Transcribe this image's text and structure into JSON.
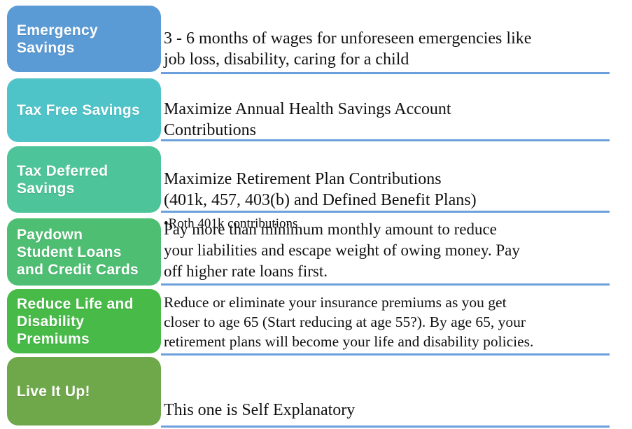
{
  "divider_color": "#6CA0DC",
  "rows": [
    {
      "label": "Emergency\nSavings",
      "box_color": "#5B9BD5",
      "text": "3 - 6 months of wages for unforeseen emergencies like\njob loss, disability, caring for a child",
      "note": ""
    },
    {
      "label": "Tax Free Savings",
      "box_color": "#4EC3C8",
      "text": "Maximize Annual Health Savings Account\nContributions",
      "note": ""
    },
    {
      "label": "Tax Deferred\nSavings",
      "box_color": "#4EC49A",
      "text": "Maximize Retirement Plan Contributions\n(401k, 457, 403(b) and Defined Benefit Plans)",
      "note": "•Roth 401k contributions"
    },
    {
      "label": "Paydown\nStudent Loans\nand Credit Cards",
      "box_color": "#4DBE72",
      "text": "Pay more than minimum monthly amount to reduce\nyour liabilities and escape weight of owing money.  Pay\noff higher rate loans first.",
      "note": ""
    },
    {
      "label": "Reduce Life and\nDisability\nPremiums",
      "box_color": "#47BA47",
      "text": "Reduce or eliminate your insurance premiums as you get\ncloser to age 65 (Start reducing at age 55?).  By age 65, your\nretirement plans will become your life and disability policies.",
      "note": ""
    },
    {
      "label": "Live It Up!",
      "box_color": "#6FA84B",
      "text": "This one is Self Explanatory",
      "note": ""
    }
  ]
}
